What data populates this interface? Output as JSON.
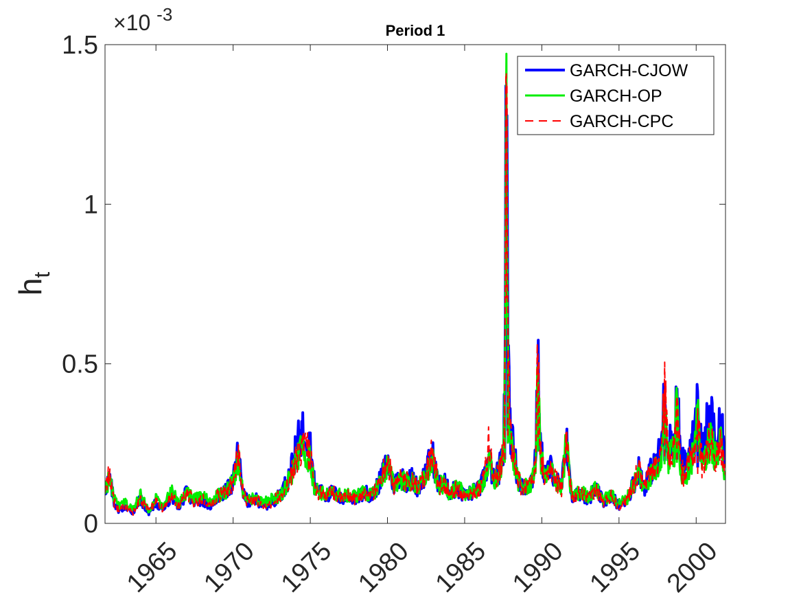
{
  "chart_data": {
    "type": "line",
    "title": "Period 1",
    "xlabel": "",
    "ylabel": "h",
    "ylabel_subscript": "t",
    "y_exponent_label": "×10",
    "y_exponent_power": "-3",
    "xlim": [
      1961.7,
      2001.9
    ],
    "ylim": [
      0,
      1.5
    ],
    "xticks": [
      1965,
      1970,
      1975,
      1980,
      1985,
      1990,
      1995,
      2000
    ],
    "xtick_labels": [
      "1965",
      "1970",
      "1975",
      "1980",
      "1985",
      "1990",
      "1995",
      "2000"
    ],
    "yticks": [
      0,
      0.5,
      1,
      1.5
    ],
    "ytick_labels": [
      "0",
      "0.5",
      "1",
      "1.5"
    ],
    "legend_position": "top-right",
    "grid": false,
    "series": [
      {
        "name": "GARCH-CJOW",
        "color": "#0000ff",
        "style": "solid",
        "scale": 1.08,
        "x": [
          1961.7,
          1962.0,
          1962.3,
          1962.6,
          1963.0,
          1963.5,
          1964.0,
          1964.5,
          1965.0,
          1965.5,
          1966.0,
          1966.5,
          1967.0,
          1967.5,
          1968.0,
          1968.5,
          1969.0,
          1969.5,
          1970.0,
          1970.3,
          1970.7,
          1971.0,
          1971.5,
          1972.0,
          1972.5,
          1973.0,
          1973.5,
          1973.9,
          1974.3,
          1974.7,
          1975.0,
          1975.3,
          1975.7,
          1976.0,
          1976.5,
          1977.0,
          1977.5,
          1978.0,
          1978.5,
          1979.0,
          1979.5,
          1980.0,
          1980.4,
          1980.8,
          1981.2,
          1981.6,
          1982.0,
          1982.5,
          1982.9,
          1983.3,
          1983.7,
          1984.0,
          1984.5,
          1985.0,
          1985.5,
          1986.0,
          1986.3,
          1986.6,
          1986.9,
          1987.2,
          1987.5,
          1987.6,
          1987.7,
          1987.8,
          1987.95,
          1988.2,
          1988.5,
          1988.8,
          1989.1,
          1989.4,
          1989.6,
          1989.75,
          1989.9,
          1990.2,
          1990.6,
          1991.0,
          1991.3,
          1991.6,
          1991.8,
          1992.0,
          1992.5,
          1993.0,
          1993.5,
          1994.0,
          1994.5,
          1995.0,
          1995.5,
          1996.0,
          1996.3,
          1996.6,
          1996.9,
          1997.2,
          1997.5,
          1997.8,
          1997.95,
          1998.2,
          1998.4,
          1998.6,
          1998.75,
          1999.0,
          1999.3,
          1999.6,
          1999.9,
          2000.1,
          2000.4,
          2000.7,
          2001.0,
          2001.3,
          2001.6,
          2001.9
        ],
        "y": [
          0.1,
          0.13,
          0.06,
          0.04,
          0.05,
          0.03,
          0.07,
          0.03,
          0.06,
          0.04,
          0.08,
          0.05,
          0.09,
          0.06,
          0.07,
          0.05,
          0.08,
          0.09,
          0.12,
          0.2,
          0.08,
          0.06,
          0.07,
          0.05,
          0.06,
          0.08,
          0.12,
          0.18,
          0.25,
          0.28,
          0.22,
          0.1,
          0.09,
          0.08,
          0.09,
          0.07,
          0.08,
          0.07,
          0.09,
          0.08,
          0.12,
          0.18,
          0.11,
          0.14,
          0.12,
          0.13,
          0.1,
          0.15,
          0.2,
          0.11,
          0.12,
          0.09,
          0.1,
          0.08,
          0.09,
          0.1,
          0.14,
          0.18,
          0.12,
          0.15,
          0.2,
          0.4,
          1.3,
          0.58,
          0.28,
          0.2,
          0.12,
          0.1,
          0.11,
          0.13,
          0.2,
          0.46,
          0.22,
          0.14,
          0.16,
          0.12,
          0.1,
          0.26,
          0.12,
          0.07,
          0.09,
          0.07,
          0.1,
          0.06,
          0.08,
          0.05,
          0.07,
          0.12,
          0.16,
          0.1,
          0.14,
          0.16,
          0.18,
          0.25,
          0.39,
          0.2,
          0.26,
          0.22,
          0.4,
          0.18,
          0.17,
          0.22,
          0.26,
          0.35,
          0.2,
          0.28,
          0.3,
          0.22,
          0.29,
          0.18
        ]
      },
      {
        "name": "GARCH-OP",
        "color": "#00ee00",
        "style": "solid",
        "scale": 0.95,
        "x": [
          1961.7,
          1962.0,
          1962.3,
          1962.6,
          1963.0,
          1963.5,
          1964.0,
          1964.5,
          1965.0,
          1965.5,
          1966.0,
          1966.5,
          1967.0,
          1967.5,
          1968.0,
          1968.5,
          1969.0,
          1969.5,
          1970.0,
          1970.3,
          1970.7,
          1971.0,
          1971.5,
          1972.0,
          1972.5,
          1973.0,
          1973.5,
          1973.9,
          1974.3,
          1974.7,
          1975.0,
          1975.3,
          1975.7,
          1976.0,
          1976.5,
          1977.0,
          1977.5,
          1978.0,
          1978.5,
          1979.0,
          1979.5,
          1980.0,
          1980.4,
          1980.8,
          1981.2,
          1981.6,
          1982.0,
          1982.5,
          1982.9,
          1983.3,
          1983.7,
          1984.0,
          1984.5,
          1985.0,
          1985.5,
          1986.0,
          1986.3,
          1986.6,
          1986.9,
          1987.2,
          1987.5,
          1987.6,
          1987.7,
          1987.8,
          1987.95,
          1988.2,
          1988.5,
          1988.8,
          1989.1,
          1989.4,
          1989.6,
          1989.75,
          1989.9,
          1990.2,
          1990.6,
          1991.0,
          1991.3,
          1991.6,
          1991.8,
          1992.0,
          1992.5,
          1993.0,
          1993.5,
          1994.0,
          1994.5,
          1995.0,
          1995.5,
          1996.0,
          1996.3,
          1996.6,
          1996.9,
          1997.2,
          1997.5,
          1997.8,
          1997.95,
          1998.2,
          1998.4,
          1998.6,
          1998.75,
          1999.0,
          1999.3,
          1999.6,
          1999.9,
          2000.1,
          2000.4,
          2000.7,
          2001.0,
          2001.3,
          2001.6,
          2001.9
        ],
        "y": [
          0.1,
          0.13,
          0.07,
          0.05,
          0.06,
          0.04,
          0.08,
          0.04,
          0.07,
          0.05,
          0.09,
          0.06,
          0.09,
          0.07,
          0.08,
          0.06,
          0.08,
          0.09,
          0.12,
          0.19,
          0.08,
          0.07,
          0.07,
          0.06,
          0.07,
          0.08,
          0.11,
          0.15,
          0.2,
          0.22,
          0.18,
          0.1,
          0.09,
          0.08,
          0.09,
          0.08,
          0.08,
          0.08,
          0.09,
          0.08,
          0.12,
          0.17,
          0.11,
          0.13,
          0.12,
          0.12,
          0.1,
          0.14,
          0.18,
          0.11,
          0.11,
          0.09,
          0.1,
          0.09,
          0.09,
          0.1,
          0.14,
          0.17,
          0.12,
          0.14,
          0.19,
          0.38,
          1.25,
          0.5,
          0.25,
          0.18,
          0.12,
          0.1,
          0.11,
          0.12,
          0.19,
          0.45,
          0.2,
          0.13,
          0.15,
          0.12,
          0.1,
          0.25,
          0.12,
          0.08,
          0.09,
          0.08,
          0.1,
          0.07,
          0.08,
          0.06,
          0.07,
          0.12,
          0.15,
          0.1,
          0.13,
          0.15,
          0.16,
          0.22,
          0.37,
          0.18,
          0.22,
          0.19,
          0.38,
          0.15,
          0.14,
          0.18,
          0.21,
          0.3,
          0.16,
          0.22,
          0.24,
          0.18,
          0.23,
          0.14
        ]
      },
      {
        "name": "GARCH-CPC",
        "color": "#ff0000",
        "style": "dashed",
        "scale": 1.0,
        "x": [
          1961.7,
          1962.0,
          1962.3,
          1962.6,
          1963.0,
          1963.5,
          1964.0,
          1964.5,
          1965.0,
          1965.5,
          1966.0,
          1966.5,
          1967.0,
          1967.5,
          1968.0,
          1968.5,
          1969.0,
          1969.5,
          1970.0,
          1970.3,
          1970.7,
          1971.0,
          1971.5,
          1972.0,
          1972.5,
          1973.0,
          1973.5,
          1973.9,
          1974.3,
          1974.7,
          1975.0,
          1975.3,
          1975.7,
          1976.0,
          1976.5,
          1977.0,
          1977.5,
          1978.0,
          1978.5,
          1979.0,
          1979.5,
          1980.0,
          1980.4,
          1980.8,
          1981.2,
          1981.6,
          1982.0,
          1982.5,
          1982.9,
          1983.3,
          1983.7,
          1984.0,
          1984.5,
          1985.0,
          1985.5,
          1986.0,
          1986.3,
          1986.6,
          1986.9,
          1987.2,
          1987.5,
          1987.6,
          1987.7,
          1987.8,
          1987.95,
          1988.2,
          1988.5,
          1988.8,
          1989.1,
          1989.4,
          1989.6,
          1989.75,
          1989.9,
          1990.2,
          1990.6,
          1991.0,
          1991.3,
          1991.6,
          1991.8,
          1992.0,
          1992.5,
          1993.0,
          1993.5,
          1994.0,
          1994.5,
          1995.0,
          1995.5,
          1996.0,
          1996.3,
          1996.6,
          1996.9,
          1997.2,
          1997.5,
          1997.8,
          1997.95,
          1998.2,
          1998.4,
          1998.6,
          1998.75,
          1999.0,
          1999.3,
          1999.6,
          1999.9,
          2000.1,
          2000.4,
          2000.7,
          2001.0,
          2001.3,
          2001.6,
          2001.9
        ],
        "y": [
          0.11,
          0.14,
          0.06,
          0.04,
          0.05,
          0.03,
          0.07,
          0.04,
          0.06,
          0.04,
          0.08,
          0.05,
          0.09,
          0.06,
          0.07,
          0.05,
          0.08,
          0.09,
          0.12,
          0.21,
          0.08,
          0.06,
          0.07,
          0.05,
          0.06,
          0.08,
          0.11,
          0.16,
          0.21,
          0.23,
          0.19,
          0.09,
          0.09,
          0.08,
          0.09,
          0.07,
          0.08,
          0.07,
          0.09,
          0.08,
          0.12,
          0.18,
          0.11,
          0.13,
          0.12,
          0.12,
          0.1,
          0.14,
          0.21,
          0.11,
          0.11,
          0.09,
          0.1,
          0.08,
          0.09,
          0.1,
          0.15,
          0.24,
          0.12,
          0.15,
          0.2,
          0.4,
          1.41,
          0.55,
          0.26,
          0.18,
          0.12,
          0.1,
          0.11,
          0.12,
          0.2,
          0.54,
          0.2,
          0.13,
          0.15,
          0.12,
          0.1,
          0.26,
          0.12,
          0.07,
          0.09,
          0.07,
          0.1,
          0.06,
          0.08,
          0.05,
          0.07,
          0.12,
          0.16,
          0.1,
          0.14,
          0.16,
          0.17,
          0.23,
          0.42,
          0.18,
          0.23,
          0.2,
          0.4,
          0.15,
          0.14,
          0.18,
          0.21,
          0.31,
          0.16,
          0.22,
          0.25,
          0.18,
          0.23,
          0.14
        ]
      }
    ]
  }
}
